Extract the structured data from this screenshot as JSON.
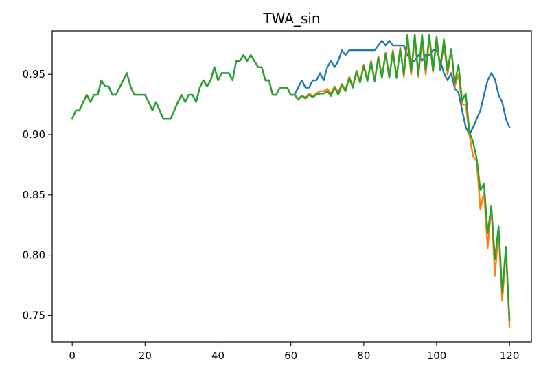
{
  "chart_data": {
    "type": "line",
    "title": "TWA_sin",
    "xlabel": "",
    "ylabel": "",
    "xlim": [
      -5.5,
      126
    ],
    "ylim": [
      0.728,
      0.986
    ],
    "xticks": [
      0,
      20,
      40,
      60,
      80,
      100,
      120
    ],
    "yticks": [
      0.75,
      0.8,
      0.85,
      0.9,
      0.95
    ],
    "ytick_labels": [
      "0.75",
      "0.80",
      "0.85",
      "0.90",
      "0.95"
    ],
    "grid": false,
    "legend": "none",
    "series": [
      {
        "color": "#1f77b4",
        "x": [
          0,
          1,
          2,
          3,
          4,
          5,
          6,
          7,
          8,
          9,
          10,
          11,
          12,
          13,
          14,
          15,
          16,
          17,
          18,
          19,
          20,
          21,
          22,
          23,
          24,
          25,
          26,
          27,
          28,
          29,
          30,
          31,
          32,
          33,
          34,
          35,
          36,
          37,
          38,
          39,
          40,
          41,
          42,
          43,
          44,
          45,
          46,
          47,
          48,
          49,
          50,
          51,
          52,
          53,
          54,
          55,
          56,
          57,
          58,
          59,
          60,
          61,
          62,
          63,
          64,
          65,
          66,
          67,
          68,
          69,
          70,
          71,
          72,
          73,
          74,
          75,
          76,
          77,
          78,
          79,
          80,
          81,
          82,
          83,
          84,
          85,
          86,
          87,
          88,
          89,
          90,
          91,
          92,
          93,
          94,
          95,
          96,
          97,
          98,
          99,
          100,
          101,
          102,
          103,
          104,
          105,
          106,
          107,
          108,
          109,
          110,
          111,
          112,
          113,
          114,
          115,
          116,
          117,
          118,
          119,
          120
        ],
        "y": [
          0.913,
          0.92,
          0.92,
          0.927,
          0.933,
          0.927,
          0.933,
          0.933,
          0.945,
          0.94,
          0.94,
          0.933,
          0.933,
          0.939,
          0.945,
          0.951,
          0.94,
          0.933,
          0.933,
          0.933,
          0.933,
          0.927,
          0.92,
          0.927,
          0.92,
          0.913,
          0.913,
          0.913,
          0.92,
          0.927,
          0.933,
          0.927,
          0.933,
          0.933,
          0.927,
          0.939,
          0.945,
          0.94,
          0.945,
          0.956,
          0.945,
          0.951,
          0.951,
          0.951,
          0.945,
          0.961,
          0.961,
          0.966,
          0.961,
          0.966,
          0.961,
          0.956,
          0.956,
          0.945,
          0.945,
          0.933,
          0.933,
          0.939,
          0.939,
          0.939,
          0.933,
          0.933,
          0.939,
          0.945,
          0.939,
          0.939,
          0.945,
          0.945,
          0.951,
          0.945,
          0.956,
          0.961,
          0.956,
          0.961,
          0.97,
          0.966,
          0.97,
          0.97,
          0.97,
          0.97,
          0.97,
          0.97,
          0.97,
          0.97,
          0.974,
          0.978,
          0.974,
          0.978,
          0.974,
          0.974,
          0.974,
          0.974,
          0.966,
          0.961,
          0.961,
          0.966,
          0.961,
          0.966,
          0.966,
          0.97,
          0.97,
          0.961,
          0.951,
          0.945,
          0.951,
          0.938,
          0.935,
          0.92,
          0.906,
          0.9,
          0.906,
          0.913,
          0.92,
          0.933,
          0.945,
          0.951,
          0.946,
          0.933,
          0.927,
          0.913,
          0.906
        ]
      },
      {
        "color": "#ff7f0e",
        "x": [
          60,
          61,
          62,
          63,
          64,
          65,
          66,
          67,
          68,
          69,
          70,
          71,
          72,
          73,
          74,
          75,
          76,
          77,
          78,
          79,
          80,
          81,
          82,
          83,
          84,
          85,
          86,
          87,
          88,
          89,
          90,
          91,
          92,
          93,
          94,
          95,
          96,
          97,
          98,
          99,
          100,
          101,
          102,
          103,
          104,
          105,
          106,
          107,
          108,
          109,
          110,
          111,
          112,
          113,
          114,
          115,
          116,
          117,
          118,
          119,
          120
        ],
        "y": [
          0.933,
          0.933,
          0.93,
          0.932,
          0.931,
          0.934,
          0.932,
          0.934,
          0.936,
          0.936,
          0.938,
          0.934,
          0.94,
          0.935,
          0.942,
          0.937,
          0.948,
          0.94,
          0.953,
          0.944,
          0.958,
          0.945,
          0.961,
          0.945,
          0.965,
          0.948,
          0.968,
          0.948,
          0.97,
          0.948,
          0.972,
          0.948,
          0.978,
          0.95,
          0.98,
          0.948,
          0.98,
          0.95,
          0.98,
          0.952,
          0.978,
          0.955,
          0.975,
          0.95,
          0.97,
          0.94,
          0.95,
          0.925,
          0.925,
          0.9,
          0.882,
          0.878,
          0.838,
          0.852,
          0.806,
          0.84,
          0.783,
          0.82,
          0.762,
          0.804,
          0.74
        ]
      },
      {
        "color": "#2ca02c",
        "x": [
          0,
          1,
          2,
          3,
          4,
          5,
          6,
          7,
          8,
          9,
          10,
          11,
          12,
          13,
          14,
          15,
          16,
          17,
          18,
          19,
          20,
          21,
          22,
          23,
          24,
          25,
          26,
          27,
          28,
          29,
          30,
          31,
          32,
          33,
          34,
          35,
          36,
          37,
          38,
          39,
          40,
          41,
          42,
          43,
          44,
          45,
          46,
          47,
          48,
          49,
          50,
          51,
          52,
          53,
          54,
          55,
          56,
          57,
          58,
          59,
          60,
          61,
          62,
          63,
          64,
          65,
          66,
          67,
          68,
          69,
          70,
          71,
          72,
          73,
          74,
          75,
          76,
          77,
          78,
          79,
          80,
          81,
          82,
          83,
          84,
          85,
          86,
          87,
          88,
          89,
          90,
          91,
          92,
          93,
          94,
          95,
          96,
          97,
          98,
          99,
          100,
          101,
          102,
          103,
          104,
          105,
          106,
          107,
          108,
          109,
          110,
          111,
          112,
          113,
          114,
          115,
          116,
          117,
          118,
          119,
          120
        ],
        "y": [
          0.913,
          0.92,
          0.92,
          0.927,
          0.933,
          0.927,
          0.933,
          0.933,
          0.945,
          0.94,
          0.94,
          0.933,
          0.933,
          0.939,
          0.945,
          0.951,
          0.94,
          0.933,
          0.933,
          0.933,
          0.933,
          0.927,
          0.92,
          0.927,
          0.92,
          0.913,
          0.913,
          0.913,
          0.92,
          0.927,
          0.933,
          0.927,
          0.933,
          0.933,
          0.927,
          0.939,
          0.945,
          0.94,
          0.945,
          0.956,
          0.945,
          0.951,
          0.951,
          0.951,
          0.945,
          0.961,
          0.961,
          0.966,
          0.961,
          0.966,
          0.961,
          0.956,
          0.956,
          0.945,
          0.945,
          0.933,
          0.933,
          0.939,
          0.939,
          0.939,
          0.933,
          0.933,
          0.929,
          0.932,
          0.93,
          0.933,
          0.931,
          0.933,
          0.934,
          0.934,
          0.936,
          0.932,
          0.939,
          0.933,
          0.941,
          0.936,
          0.947,
          0.939,
          0.952,
          0.943,
          0.957,
          0.944,
          0.96,
          0.944,
          0.964,
          0.947,
          0.967,
          0.947,
          0.969,
          0.947,
          0.971,
          0.95,
          0.983,
          0.952,
          0.983,
          0.95,
          0.983,
          0.953,
          0.983,
          0.953,
          0.981,
          0.953,
          0.979,
          0.953,
          0.971,
          0.943,
          0.958,
          0.928,
          0.934,
          0.902,
          0.894,
          0.88,
          0.854,
          0.859,
          0.818,
          0.841,
          0.797,
          0.824,
          0.769,
          0.807,
          0.746
        ]
      }
    ]
  }
}
